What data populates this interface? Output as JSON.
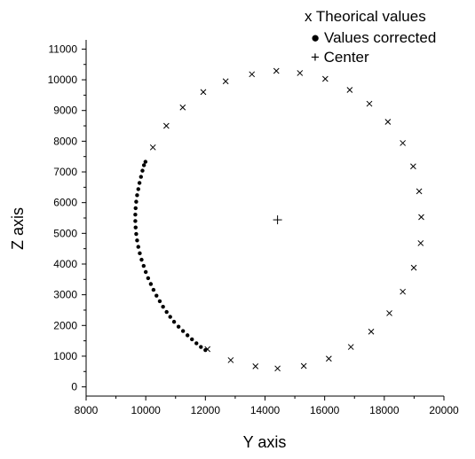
{
  "chart_data": {
    "type": "scatter",
    "title": "",
    "xlabel": "Y axis",
    "ylabel": "Z axis",
    "xlim": [
      8000,
      20000
    ],
    "ylim": [
      -300,
      11300
    ],
    "xticks": [
      8000,
      10000,
      12000,
      14000,
      16000,
      18000,
      20000
    ],
    "yticks": [
      0,
      1000,
      2000,
      3000,
      4000,
      5000,
      6000,
      7000,
      8000,
      9000,
      10000,
      11000
    ],
    "grid": false,
    "legend_position": "top-right",
    "series": [
      {
        "name": "Theorical values",
        "marker": "x",
        "legend_marker": "x",
        "points": [
          [
            14420,
            600
          ],
          [
            15300,
            680
          ],
          [
            16140,
            920
          ],
          [
            16880,
            1300
          ],
          [
            17560,
            1800
          ],
          [
            18170,
            2400
          ],
          [
            18620,
            3100
          ],
          [
            18990,
            3880
          ],
          [
            19220,
            4680
          ],
          [
            19240,
            5530
          ],
          [
            19170,
            6370
          ],
          [
            18970,
            7180
          ],
          [
            18620,
            7940
          ],
          [
            18120,
            8630
          ],
          [
            17500,
            9220
          ],
          [
            16840,
            9670
          ],
          [
            16020,
            10030
          ],
          [
            15170,
            10220
          ],
          [
            14380,
            10290
          ],
          [
            13560,
            10180
          ],
          [
            12680,
            9950
          ],
          [
            11930,
            9600
          ],
          [
            11240,
            9100
          ],
          [
            10690,
            8500
          ],
          [
            10240,
            7800
          ],
          [
            12070,
            1230
          ],
          [
            12850,
            870
          ],
          [
            13680,
            670
          ]
        ]
      },
      {
        "name": "Values corrected",
        "marker": "dot",
        "legend_marker": "●",
        "points": [
          [
            12000,
            1200
          ],
          [
            11850,
            1300
          ],
          [
            11700,
            1420
          ],
          [
            11550,
            1550
          ],
          [
            11400,
            1680
          ],
          [
            11250,
            1820
          ],
          [
            11100,
            1960
          ],
          [
            10950,
            2120
          ],
          [
            10820,
            2280
          ],
          [
            10700,
            2440
          ],
          [
            10580,
            2610
          ],
          [
            10470,
            2790
          ],
          [
            10360,
            2970
          ],
          [
            10260,
            3160
          ],
          [
            10170,
            3350
          ],
          [
            10080,
            3540
          ],
          [
            10000,
            3740
          ],
          [
            9930,
            3940
          ],
          [
            9860,
            4140
          ],
          [
            9800,
            4350
          ],
          [
            9750,
            4560
          ],
          [
            9710,
            4770
          ],
          [
            9680,
            4980
          ],
          [
            9660,
            5190
          ],
          [
            9650,
            5400
          ],
          [
            9650,
            5610
          ],
          [
            9660,
            5820
          ],
          [
            9680,
            6030
          ],
          [
            9710,
            6240
          ],
          [
            9750,
            6440
          ],
          [
            9790,
            6640
          ],
          [
            9840,
            6840
          ],
          [
            9890,
            7040
          ],
          [
            9940,
            7220
          ],
          [
            9990,
            7330
          ]
        ]
      },
      {
        "name": "Center",
        "marker": "+",
        "legend_marker": "+",
        "points": [
          [
            14420,
            5440
          ]
        ]
      }
    ]
  }
}
